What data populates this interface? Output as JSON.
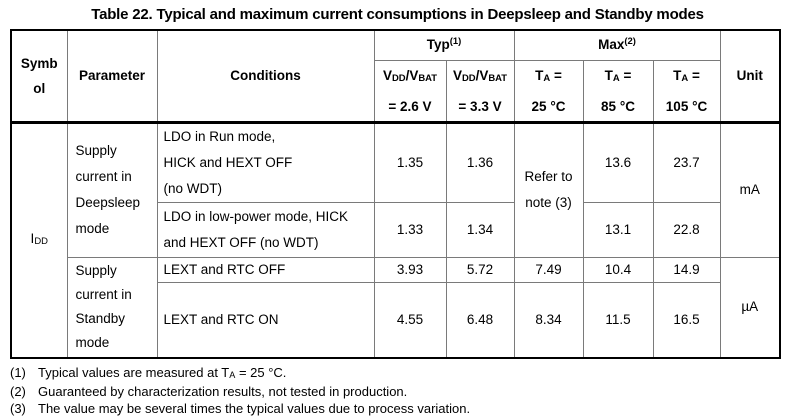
{
  "title": "Table 22. Typical and maximum current consumptions in Deepsleep and Standby modes",
  "header": {
    "symbol": "Symb\nol",
    "parameter": "Parameter",
    "conditions": "Conditions",
    "typ_group": "Typ^{(1)}",
    "max_group": "Max^{(2)}",
    "typ_cols": [
      "V_{DD}/V_{BAT}\n= 2.6 V",
      "V_{DD}/V_{BAT}\n= 3.3 V"
    ],
    "max_cols": [
      "T_{A} =\n25 °C",
      "T_{A} =\n85 °C",
      "T_{A} =\n105 °C"
    ],
    "unit": "Unit"
  },
  "body": {
    "symbol": "I_{DD}",
    "deepsleep": {
      "parameter": "Supply\ncurrent in\nDeepsleep\nmode",
      "max_25_note": "Refer to\nnote (3)",
      "unit": "mA",
      "rows": [
        {
          "conditions": "LDO in Run mode,\nHICK and HEXT OFF\n(no WDT)",
          "typ_2v6": "1.35",
          "typ_3v3": "1.36",
          "max_85": "13.6",
          "max_105": "23.7"
        },
        {
          "conditions": "LDO in low-power mode, HICK\nand HEXT OFF (no WDT)",
          "typ_2v6": "1.33",
          "typ_3v3": "1.34",
          "max_85": "13.1",
          "max_105": "22.8"
        }
      ]
    },
    "standby": {
      "parameter": "Supply\ncurrent in\nStandby\nmode",
      "unit": "µA",
      "rows": [
        {
          "conditions": "LEXT and RTC OFF",
          "typ_2v6": "3.93",
          "typ_3v3": "5.72",
          "max_25": "7.49",
          "max_85": "10.4",
          "max_105": "14.9"
        },
        {
          "conditions": "LEXT and RTC ON",
          "typ_2v6": "4.55",
          "typ_3v3": "6.48",
          "max_25": "8.34",
          "max_85": "11.5",
          "max_105": "16.5"
        }
      ]
    }
  },
  "footnotes": [
    {
      "num": "(1)",
      "text": "Typical values are measured at T_{A} = 25 °C."
    },
    {
      "num": "(2)",
      "text": "Guaranteed by characterization results, not tested in production."
    },
    {
      "num": "(3)",
      "text": "The value may be several times the typical values due to process variation."
    }
  ]
}
